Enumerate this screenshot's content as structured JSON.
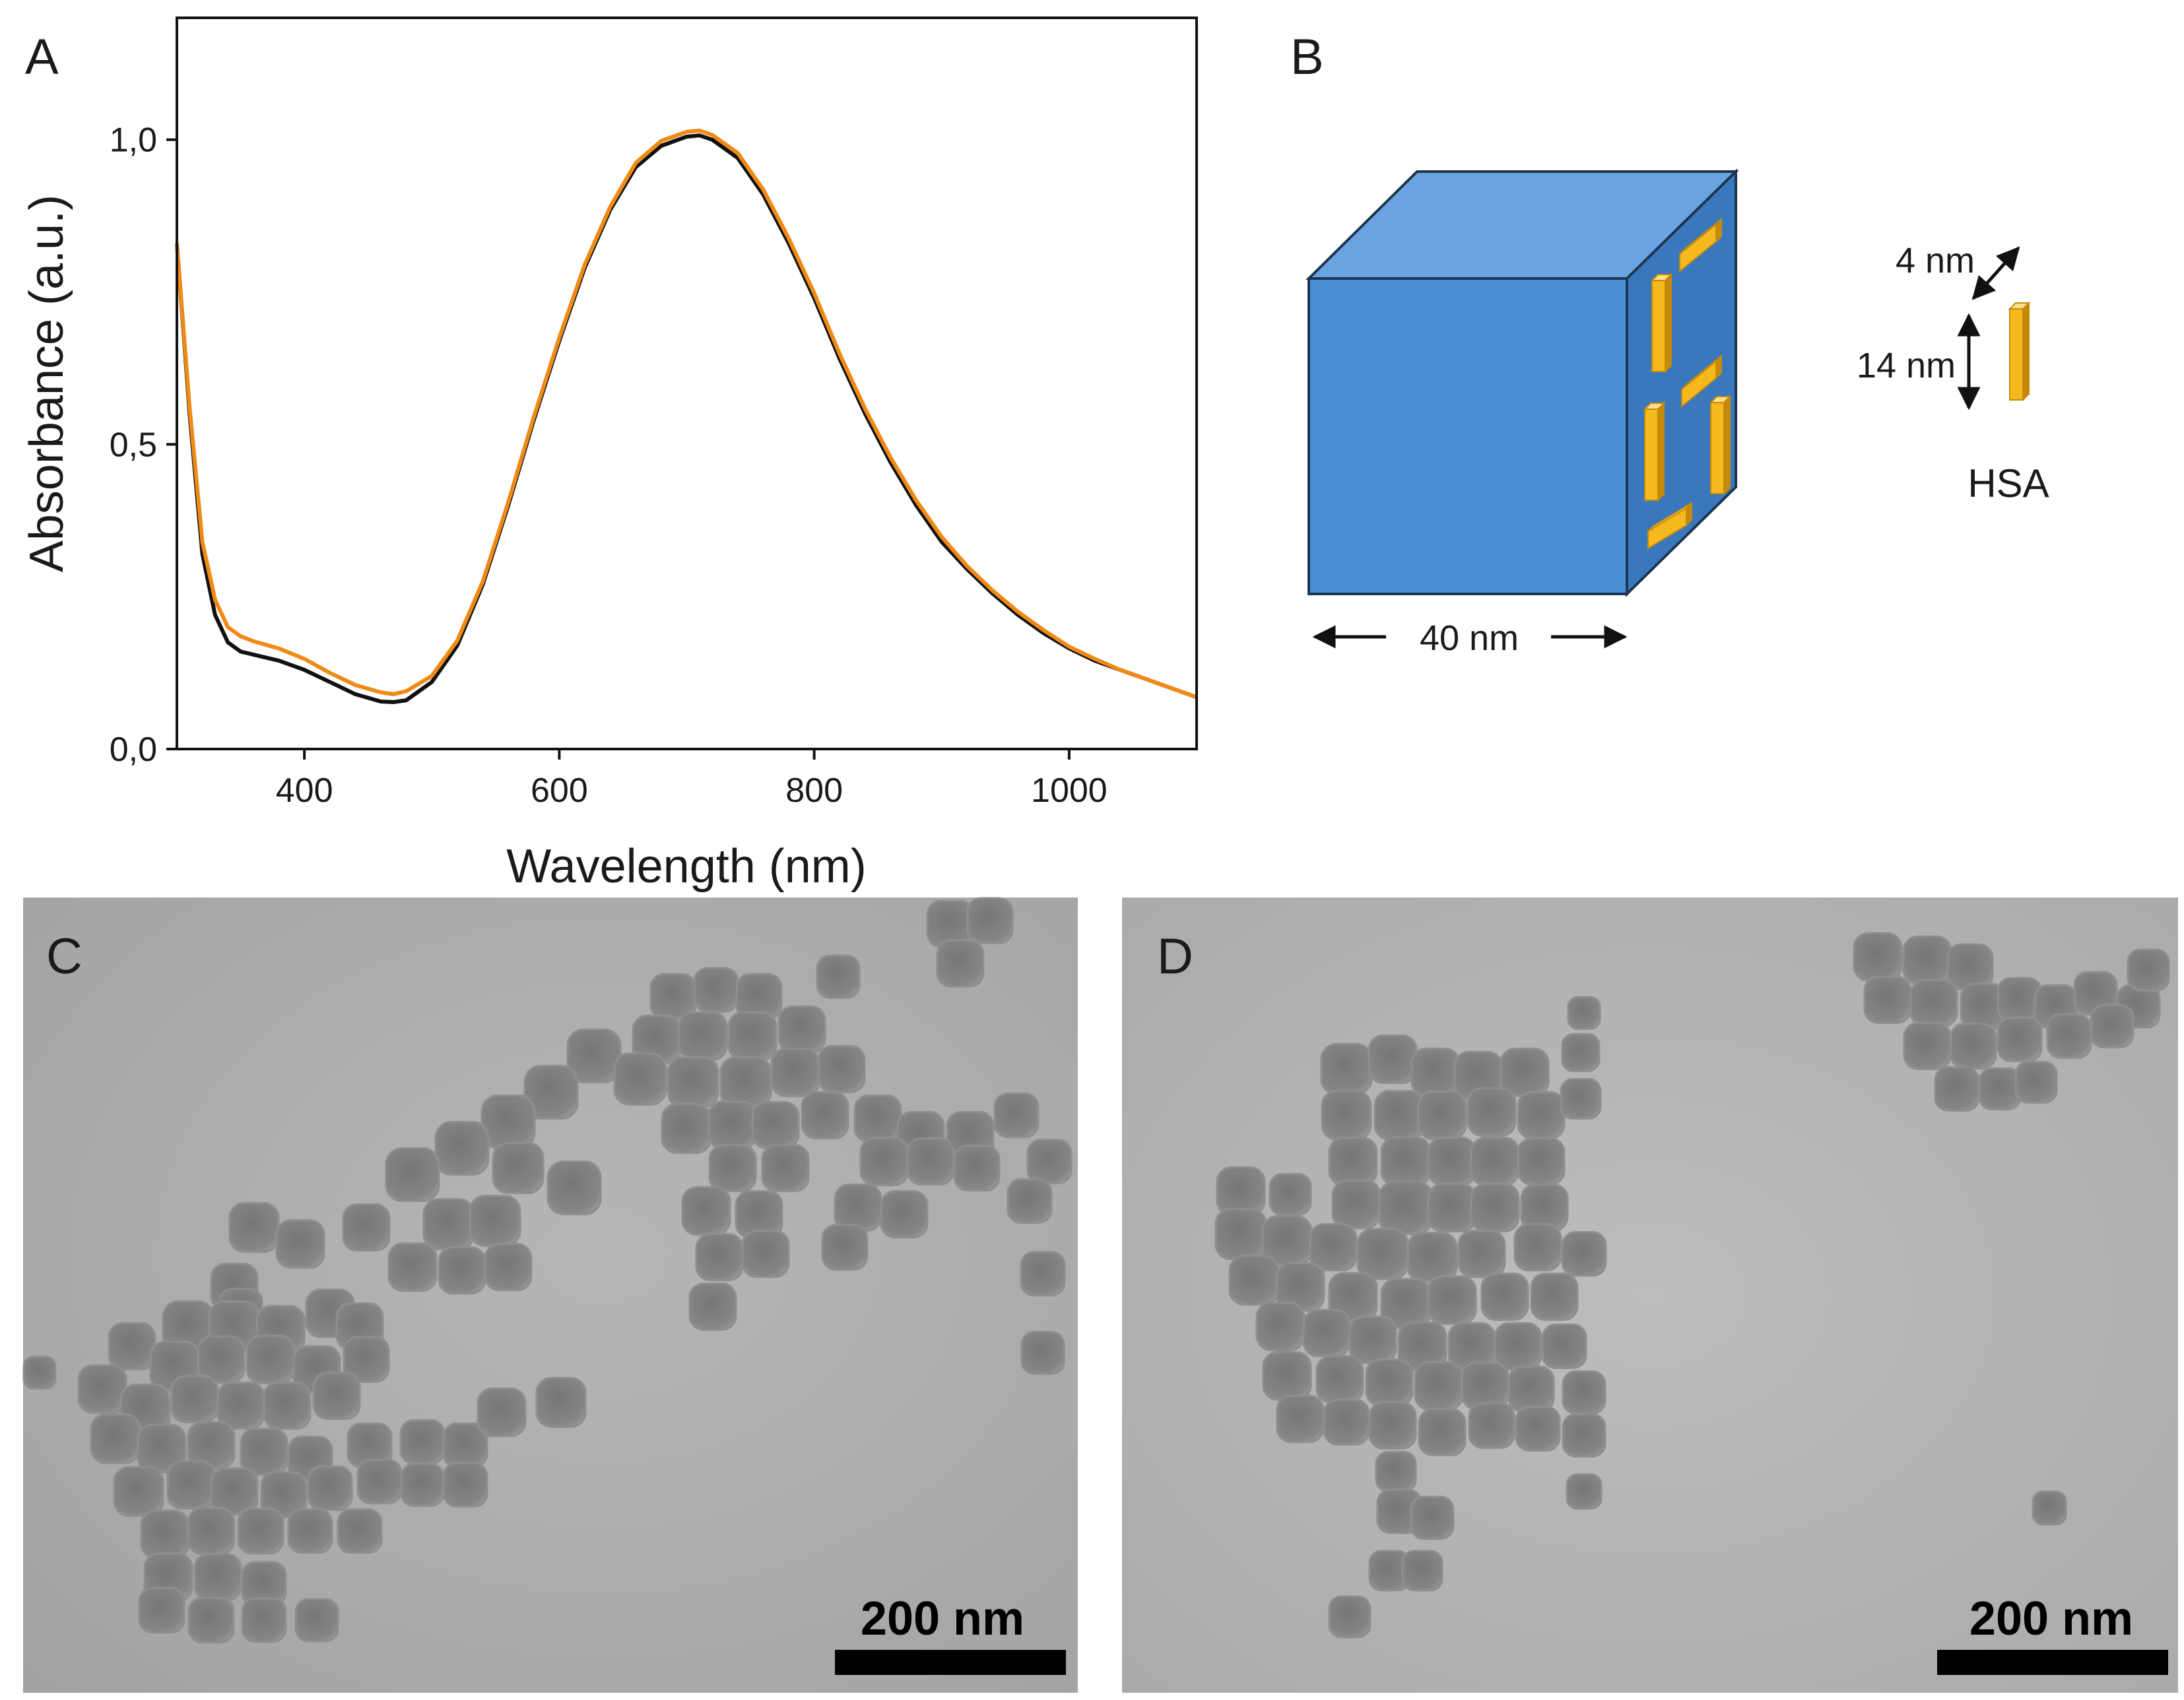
{
  "panels": {
    "a": {
      "letter": "A"
    },
    "b": {
      "letter": "B"
    },
    "c": {
      "letter": "C",
      "scale_bar": "200 nm"
    },
    "d": {
      "letter": "D",
      "scale_bar": "200 nm"
    }
  },
  "chart_data": {
    "type": "line",
    "xlabel": "Wavelength (nm)",
    "ylabel": "Absorbance (a.u.)",
    "xlim": [
      300,
      1100
    ],
    "ylim": [
      0,
      1.2
    ],
    "xticks": [
      400,
      600,
      800,
      1000
    ],
    "xtick_labels": [
      "400",
      "600",
      "800",
      "1000"
    ],
    "yticks": [
      0,
      0.5,
      1.0
    ],
    "ytick_labels": [
      "0,0",
      "0,5",
      "1,0"
    ],
    "grid": false,
    "series": [
      {
        "color": "#111111",
        "x": [
          300,
          310,
          320,
          330,
          340,
          350,
          360,
          380,
          400,
          420,
          440,
          460,
          470,
          480,
          500,
          520,
          540,
          560,
          580,
          600,
          620,
          640,
          660,
          680,
          700,
          710,
          720,
          740,
          760,
          780,
          800,
          820,
          840,
          860,
          880,
          900,
          920,
          940,
          960,
          980,
          1000,
          1020,
          1040,
          1060,
          1080,
          1100
        ],
        "y": [
          0.83,
          0.55,
          0.32,
          0.22,
          0.175,
          0.16,
          0.155,
          0.145,
          0.13,
          0.11,
          0.09,
          0.078,
          0.077,
          0.08,
          0.11,
          0.17,
          0.27,
          0.4,
          0.54,
          0.67,
          0.79,
          0.885,
          0.955,
          0.99,
          1.005,
          1.007,
          1.0,
          0.97,
          0.91,
          0.83,
          0.74,
          0.64,
          0.55,
          0.47,
          0.4,
          0.34,
          0.295,
          0.255,
          0.22,
          0.19,
          0.165,
          0.145,
          0.13,
          0.115,
          0.1,
          0.085
        ]
      },
      {
        "color": "#f08a17",
        "x": [
          300,
          310,
          320,
          330,
          340,
          350,
          360,
          380,
          400,
          420,
          440,
          460,
          470,
          480,
          500,
          520,
          540,
          560,
          580,
          600,
          620,
          640,
          660,
          680,
          700,
          710,
          720,
          740,
          760,
          780,
          800,
          820,
          840,
          860,
          880,
          900,
          920,
          940,
          960,
          980,
          1000,
          1020,
          1040,
          1060,
          1080,
          1100
        ],
        "y": [
          0.83,
          0.56,
          0.34,
          0.245,
          0.2,
          0.185,
          0.177,
          0.165,
          0.148,
          0.125,
          0.105,
          0.093,
          0.09,
          0.095,
          0.12,
          0.178,
          0.275,
          0.405,
          0.545,
          0.675,
          0.795,
          0.89,
          0.962,
          0.998,
          1.013,
          1.015,
          1.008,
          0.978,
          0.918,
          0.838,
          0.748,
          0.648,
          0.558,
          0.478,
          0.408,
          0.348,
          0.3,
          0.26,
          0.225,
          0.195,
          0.168,
          0.148,
          0.13,
          0.115,
          0.1,
          0.085
        ]
      }
    ]
  },
  "schematic": {
    "cube_colors": {
      "front": "#4a90d9",
      "top": "#6aa4e0",
      "side": "#3a78be",
      "outline": "#1d3550"
    },
    "rod_colors": {
      "front": "#f5b91e",
      "light": "#ffe08a",
      "dark": "#c48a0c"
    },
    "cube_width_label": "40 nm",
    "hsa_length_label": "14 nm",
    "hsa_width_label": "4 nm",
    "hsa_label": "HSA"
  }
}
